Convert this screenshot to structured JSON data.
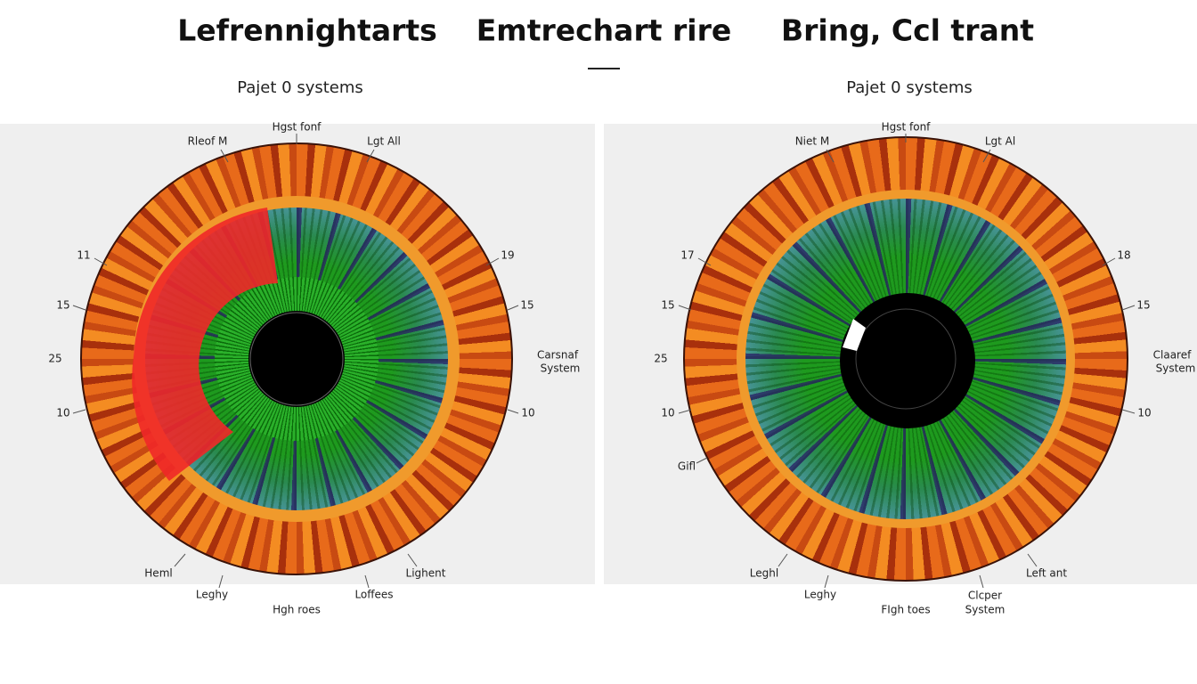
{
  "header": {
    "titles": [
      "Lefrennightarts",
      "Emtrechart rire",
      "Bring, Ccl trant"
    ],
    "subtitles": [
      "Pajet 0 systems",
      "Pajet 0 systems"
    ]
  },
  "panels": [
    {
      "labels": [
        "Hgst fonf",
        "Rleof M",
        "Lgt All",
        "11",
        "19",
        "15",
        "15",
        "25",
        [
          "Carsnaf",
          "System"
        ],
        "10",
        "10",
        "Heml",
        "Lighent",
        "Leghy",
        "Loffees",
        "Hgh roes"
      ]
    },
    {
      "labels": [
        "Hgst fonf",
        "Niet M",
        "Lgt Al",
        "17",
        "18",
        "15",
        "15",
        "25",
        [
          "Claaref",
          "System"
        ],
        "10",
        "10",
        "Gifl",
        "Leghl",
        "Left ant",
        "Leghy",
        [
          "Clcper",
          "System"
        ],
        "FIgh toes"
      ]
    }
  ]
}
